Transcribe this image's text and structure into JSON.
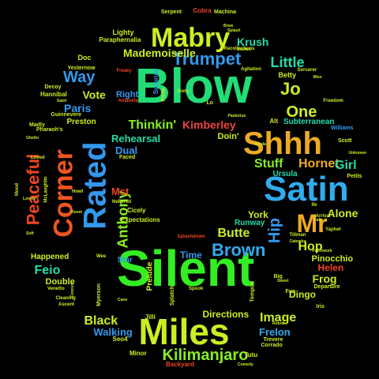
{
  "cloud": {
    "words": [
      {
        "text": "Blow",
        "color": "#22dd77"
      },
      {
        "text": "Silent",
        "color": "#33ee22"
      },
      {
        "text": "Miles",
        "color": "#ccee22"
      },
      {
        "text": "Satin",
        "color": "#33aaee"
      },
      {
        "text": "Shhh",
        "color": "#eeaa22"
      },
      {
        "text": "Mabry",
        "color": "#ccee22"
      },
      {
        "text": "Rated",
        "color": "#3399ee"
      },
      {
        "text": "Corner",
        "color": "#ee5522"
      },
      {
        "text": "Peaceful",
        "color": "#ee4422"
      },
      {
        "text": "Trumpet",
        "color": "#3399ee"
      },
      {
        "text": "Brown",
        "color": "#33aaee"
      },
      {
        "text": "Mr",
        "color": "#eeaa22"
      },
      {
        "text": "Kilimanjaro",
        "color": "#88ee22"
      },
      {
        "text": "Way",
        "color": "#3399ee"
      },
      {
        "text": "Little",
        "color": "#22ddaa"
      },
      {
        "text": "Mademoiselle",
        "color": "#ccee22"
      },
      {
        "text": "Krush",
        "color": "#22ddaa"
      },
      {
        "text": "One",
        "color": "#ccee22"
      },
      {
        "text": "Jo",
        "color": "#ccee22"
      },
      {
        "text": "Thinkin'",
        "color": "#88ee22"
      },
      {
        "text": "Stuff",
        "color": "#88ee22"
      },
      {
        "text": "Hornet",
        "color": "#eeaa22"
      },
      {
        "text": "Girl",
        "color": "#22ddaa"
      },
      {
        "text": "Anthony",
        "color": "#88ee22"
      },
      {
        "text": "Hip",
        "color": "#3399ee"
      },
      {
        "text": "Butte",
        "color": "#ccee22"
      },
      {
        "text": "Alone",
        "color": "#ccee22"
      },
      {
        "text": "Black",
        "color": "#ccee22"
      },
      {
        "text": "Image",
        "color": "#ccee22"
      },
      {
        "text": "Kimberley",
        "color": "#ee4444"
      },
      {
        "text": "Hop",
        "color": "#ccee22"
      },
      {
        "text": "Feio",
        "color": "#22ddaa"
      },
      {
        "text": "Frog",
        "color": "#ccee22"
      },
      {
        "text": "Helen",
        "color": "#ee4422"
      },
      {
        "text": "Vote",
        "color": "#ccee22"
      },
      {
        "text": "Paris",
        "color": "#3399ee"
      },
      {
        "text": "Rehearsal",
        "color": "#22ddaa"
      },
      {
        "text": "Dual",
        "color": "#3399ee"
      },
      {
        "text": "Mst",
        "color": "#ee4422"
      },
      {
        "text": "York",
        "color": "#ccee22"
      },
      {
        "text": "Runway",
        "color": "#22ddaa"
      },
      {
        "text": "Walking",
        "color": "#3399ee"
      },
      {
        "text": "Frelon",
        "color": "#33aaee"
      },
      {
        "text": "Directions",
        "color": "#ccee22"
      },
      {
        "text": "Time",
        "color": "#3399ee"
      },
      {
        "text": "Double",
        "color": "#ccee22"
      },
      {
        "text": "Happened",
        "color": "#ccee22"
      },
      {
        "text": "Pinocchio",
        "color": "#ccee22"
      },
      {
        "text": "Dingo",
        "color": "#ccee22"
      },
      {
        "text": "Subterranean",
        "color": "#22ddaa"
      },
      {
        "text": "Doin'",
        "color": "#ccee22"
      },
      {
        "text": "Ursula",
        "color": "#22ddaa"
      },
      {
        "text": "Preston",
        "color": "#ccee22"
      },
      {
        "text": "Right",
        "color": "#3399ee"
      },
      {
        "text": "Star",
        "color": "#3399ee"
      },
      {
        "text": "Prelude",
        "color": "#ccee22"
      },
      {
        "text": "Doc",
        "color": "#ccee22"
      },
      {
        "text": "Lighty",
        "color": "#ccee22"
      },
      {
        "text": "Paraphernalia",
        "color": "#ccee22"
      },
      {
        "text": "Serpent",
        "color": "#ccee22"
      },
      {
        "text": "Cobra",
        "color": "#ee4422"
      },
      {
        "text": "Machina",
        "color": "#ccee22"
      },
      {
        "text": "Betty",
        "color": "#ccee22"
      },
      {
        "text": "Yesternow",
        "color": "#ccee22"
      },
      {
        "text": "Hannibal",
        "color": "#ccee22"
      },
      {
        "text": "Guinnevere",
        "color": "#ccee22"
      },
      {
        "text": "Pharaoh's",
        "color": "#ccee22"
      },
      {
        "text": "Mood",
        "color": "#ccee22"
      },
      {
        "text": "Madly",
        "color": "#ccee22"
      },
      {
        "text": "McLaughlin",
        "color": "#ccee22"
      },
      {
        "text": "Faced",
        "color": "#ccee22"
      },
      {
        "text": "Cicely",
        "color": "#ccee22"
      },
      {
        "text": "Expectations",
        "color": "#ccee22"
      },
      {
        "text": "Jilli",
        "color": "#ccee22"
      },
      {
        "text": "Splatch",
        "color": "#ccee22"
      },
      {
        "text": "Spook",
        "color": "#ccee22"
      },
      {
        "text": "Seo4",
        "color": "#ccee22"
      },
      {
        "text": "Minor",
        "color": "#ccee22"
      },
      {
        "text": "Backyard",
        "color": "#ee4422"
      },
      {
        "text": "Tutu",
        "color": "#ccee22"
      },
      {
        "text": "Corrado",
        "color": "#ccee22"
      },
      {
        "text": "Trevere",
        "color": "#ccee22"
      },
      {
        "text": "Iris",
        "color": "#ccee22"
      },
      {
        "text": "Departure",
        "color": "#ccee22"
      },
      {
        "text": "Big",
        "color": "#ccee22"
      },
      {
        "text": "Fun",
        "color": "#ccee22"
      },
      {
        "text": "Williams",
        "color": "#3399ee"
      },
      {
        "text": "Scott",
        "color": "#ccee22"
      },
      {
        "text": "Petits",
        "color": "#ccee22"
      },
      {
        "text": "Loved",
        "color": "#ccee22"
      },
      {
        "text": "Freedom",
        "color": "#ccee22"
      },
      {
        "text": "Miss",
        "color": "#ccee22"
      },
      {
        "text": "Gota",
        "color": "#ccee22"
      },
      {
        "text": "Agitation",
        "color": "#ccee22"
      },
      {
        "text": "Recollections",
        "color": "#ccee22"
      },
      {
        "text": "Freaky",
        "color": "#ee4422"
      },
      {
        "text": "Surprise",
        "color": "#3399ee"
      },
      {
        "text": "Amandla",
        "color": "#ee4422"
      },
      {
        "text": "Decoy",
        "color": "#ccee22"
      },
      {
        "text": "Ghetto",
        "color": "#ccee22"
      },
      {
        "text": "Howl",
        "color": "#ccee22"
      },
      {
        "text": "Room",
        "color": "#ccee22"
      },
      {
        "text": "Soft",
        "color": "#ccee22"
      },
      {
        "text": "Concert",
        "color": "#ccee22"
      },
      {
        "text": "Cleaning",
        "color": "#ccee22"
      },
      {
        "text": "Ascent",
        "color": "#ccee22"
      },
      {
        "text": "Venetto",
        "color": "#ccee22"
      },
      {
        "text": "Wee",
        "color": "#ccee22"
      },
      {
        "text": "Myerson",
        "color": "#ccee22"
      },
      {
        "text": "Splashdown",
        "color": "#ee4422"
      },
      {
        "text": "Tillman",
        "color": "#ccee22"
      },
      {
        "text": "Catemba",
        "color": "#ccee22"
      },
      {
        "text": "Yaphet",
        "color": "#ccee22"
      },
      {
        "text": "Arrival",
        "color": "#ccee22"
      },
      {
        "text": "Falls",
        "color": "#ccee22"
      },
      {
        "text": "Alt",
        "color": "#ccee22"
      },
      {
        "text": "Lo",
        "color": "#ccee22"
      },
      {
        "text": "Pastorius",
        "color": "#ccee22"
      },
      {
        "text": "Sorcerer",
        "color": "#ccee22"
      },
      {
        "text": "Bitches",
        "color": "#ccee22"
      },
      {
        "text": "Brew",
        "color": "#ccee22"
      },
      {
        "text": "Splash",
        "color": "#ccee22"
      },
      {
        "text": "NeFertiti",
        "color": "#ccee22"
      },
      {
        "text": "Lonely",
        "color": "#ccee22"
      },
      {
        "text": "Portia",
        "color": "#ccee22"
      },
      {
        "text": "Ife",
        "color": "#ccee22"
      },
      {
        "text": "Tempus",
        "color": "#ccee22"
      },
      {
        "text": "Comedy",
        "color": "#ccee22"
      },
      {
        "text": "Robot",
        "color": "#ccee22"
      },
      {
        "text": "Sweet",
        "color": "#ccee22"
      },
      {
        "text": "Unknown",
        "color": "#ccee22"
      },
      {
        "text": "Saint",
        "color": "#ccee22"
      },
      {
        "text": "Cane",
        "color": "#ccee22"
      },
      {
        "text": "Kinda",
        "color": "#ccee22"
      },
      {
        "text": "Patchwork",
        "color": "#ccee22"
      }
    ]
  }
}
